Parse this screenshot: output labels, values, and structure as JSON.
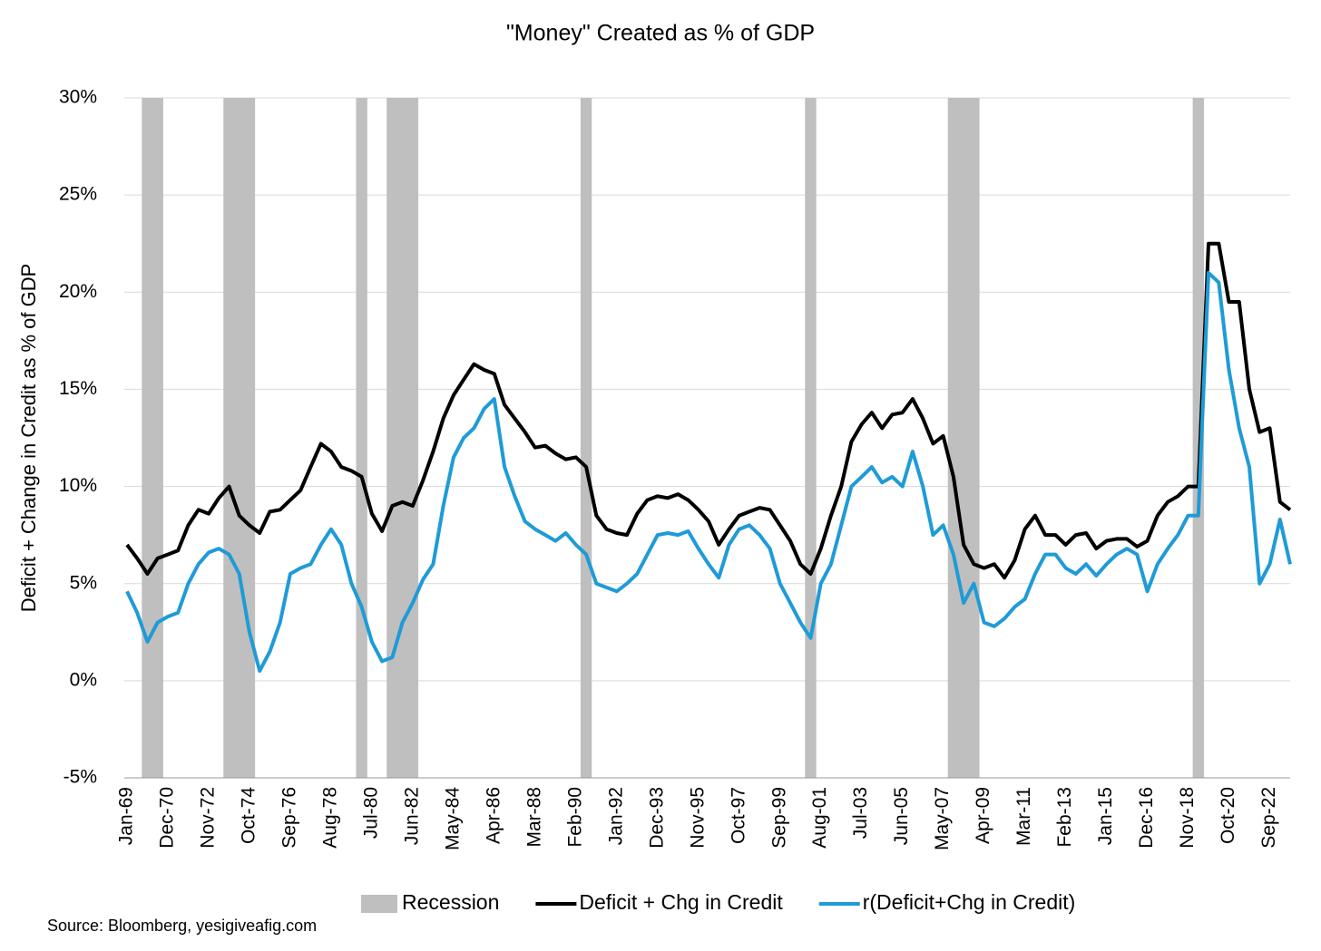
{
  "chart_data": {
    "type": "line",
    "title": "\"Money\" Created as % of GDP",
    "y_label": "Deficit + Change in Credit as % of GDP",
    "source": "Source: Bloomberg, yesigiveafig.com",
    "categories": [
      "Jan-69",
      null,
      null,
      null,
      "Dec-70",
      null,
      null,
      null,
      "Nov-72",
      null,
      null,
      null,
      "Oct-74",
      null,
      null,
      null,
      "Sep-76",
      null,
      null,
      null,
      "Aug-78",
      null,
      null,
      null,
      "Jul-80",
      null,
      null,
      null,
      "Jun-82",
      null,
      null,
      null,
      "May-84",
      null,
      null,
      null,
      "Apr-86",
      null,
      null,
      null,
      "Mar-88",
      null,
      null,
      null,
      "Feb-90",
      null,
      null,
      null,
      "Jan-92",
      null,
      null,
      null,
      "Dec-93",
      null,
      null,
      null,
      "Nov-95",
      null,
      null,
      null,
      "Oct-97",
      null,
      null,
      null,
      "Sep-99",
      null,
      null,
      null,
      "Aug-01",
      null,
      null,
      null,
      "Jul-03",
      null,
      null,
      null,
      "Jun-05",
      null,
      null,
      null,
      "May-07",
      null,
      null,
      null,
      "Apr-09",
      null,
      null,
      null,
      "Mar-11",
      null,
      null,
      null,
      "Feb-13",
      null,
      null,
      null,
      "Jan-15",
      null,
      null,
      null,
      "Dec-16",
      null,
      null,
      null,
      "Nov-18",
      null,
      null,
      null,
      "Oct-20",
      null,
      null,
      null,
      "Sep-22",
      null,
      null
    ],
    "series": [
      {
        "name": "Recession",
        "type": "bar",
        "color": "#bfbfbf",
        "values": [
          null,
          null,
          30,
          30,
          null,
          null,
          null,
          null,
          null,
          null,
          30,
          30,
          30,
          null,
          null,
          null,
          null,
          null,
          null,
          null,
          null,
          null,
          null,
          30,
          null,
          null,
          30,
          30,
          30,
          null,
          null,
          null,
          null,
          null,
          null,
          null,
          null,
          null,
          null,
          null,
          null,
          null,
          null,
          null,
          null,
          30,
          null,
          null,
          null,
          null,
          null,
          null,
          null,
          null,
          null,
          null,
          null,
          null,
          null,
          null,
          null,
          null,
          null,
          null,
          null,
          null,
          null,
          30,
          null,
          null,
          null,
          null,
          null,
          null,
          null,
          null,
          null,
          null,
          null,
          null,
          null,
          30,
          30,
          30,
          null,
          null,
          null,
          null,
          null,
          null,
          null,
          null,
          null,
          null,
          null,
          null,
          null,
          null,
          null,
          null,
          null,
          null,
          null,
          null,
          null,
          30,
          null,
          null,
          null,
          null,
          null,
          null,
          null,
          null,
          null
        ]
      },
      {
        "name": "Deficit + Chg in Credit",
        "type": "line",
        "color": "#000000",
        "values": [
          7.0,
          6.3,
          5.5,
          6.3,
          6.5,
          6.7,
          8.0,
          8.8,
          8.6,
          9.4,
          10.0,
          8.5,
          8.0,
          7.6,
          8.7,
          8.8,
          9.3,
          9.8,
          11.0,
          12.2,
          11.8,
          11.0,
          10.8,
          10.5,
          8.6,
          7.7,
          9.0,
          9.2,
          9.0,
          10.3,
          11.8,
          13.5,
          14.7,
          15.5,
          16.3,
          16.0,
          15.8,
          14.2,
          13.5,
          12.8,
          12.0,
          12.1,
          11.7,
          11.4,
          11.5,
          11.0,
          8.5,
          7.8,
          7.6,
          7.5,
          8.6,
          9.3,
          9.5,
          9.4,
          9.6,
          9.3,
          8.8,
          8.2,
          7.0,
          7.8,
          8.5,
          8.7,
          8.9,
          8.8,
          8.0,
          7.2,
          6.0,
          5.5,
          6.8,
          8.5,
          10.0,
          12.3,
          13.2,
          13.8,
          13.0,
          13.7,
          13.8,
          14.5,
          13.5,
          12.2,
          12.6,
          10.5,
          7.0,
          6.0,
          5.8,
          6.0,
          5.3,
          6.2,
          7.8,
          8.5,
          7.5,
          7.5,
          7.0,
          7.5,
          7.6,
          6.8,
          7.2,
          7.3,
          7.3,
          6.9,
          7.2,
          8.5,
          9.2,
          9.5,
          10.0,
          10.0,
          22.5,
          22.5,
          19.5,
          19.5,
          15.0,
          12.8,
          13.0,
          9.2,
          8.8
        ]
      },
      {
        "name": "r(Deficit+Chg in Credit)",
        "type": "line",
        "color": "#1f9bd7",
        "values": [
          4.6,
          3.5,
          2.0,
          3.0,
          3.3,
          3.5,
          5.0,
          6.0,
          6.6,
          6.8,
          6.5,
          5.5,
          2.5,
          0.5,
          1.5,
          3.0,
          5.5,
          5.8,
          6.0,
          7.0,
          7.8,
          7.0,
          5.0,
          3.8,
          2.0,
          1.0,
          1.2,
          3.0,
          4.0,
          5.2,
          6.0,
          9.0,
          11.5,
          12.5,
          13.0,
          14.0,
          14.5,
          11.0,
          9.5,
          8.2,
          7.8,
          7.5,
          7.2,
          7.6,
          7.0,
          6.5,
          5.0,
          4.8,
          4.6,
          5.0,
          5.5,
          6.5,
          7.5,
          7.6,
          7.5,
          7.7,
          6.8,
          6.0,
          5.3,
          7.0,
          7.8,
          8.0,
          7.5,
          6.8,
          5.0,
          4.0,
          3.0,
          2.2,
          5.0,
          6.0,
          8.0,
          10.0,
          10.5,
          11.0,
          10.2,
          10.5,
          10.0,
          11.8,
          10.0,
          7.5,
          8.0,
          6.5,
          4.0,
          5.0,
          3.0,
          2.8,
          3.2,
          3.8,
          4.2,
          5.5,
          6.5,
          6.5,
          5.8,
          5.5,
          6.0,
          5.4,
          6.0,
          6.5,
          6.8,
          6.5,
          4.6,
          6.0,
          6.8,
          7.5,
          8.5,
          8.5,
          21.0,
          20.5,
          16.0,
          13.0,
          11.0,
          5.0,
          6.0,
          8.3,
          6.0
        ]
      }
    ],
    "ylim": [
      -5,
      30
    ],
    "yticks": [
      {
        "value": -5,
        "label": "-5%"
      },
      {
        "value": 0,
        "label": "0%"
      },
      {
        "value": 5,
        "label": "5%"
      },
      {
        "value": 10,
        "label": "10%"
      },
      {
        "value": 15,
        "label": "15%"
      },
      {
        "value": 20,
        "label": "20%"
      },
      {
        "value": 25,
        "label": "25%"
      },
      {
        "value": 30,
        "label": "30%"
      }
    ],
    "grid": true,
    "legend": "bottom"
  }
}
